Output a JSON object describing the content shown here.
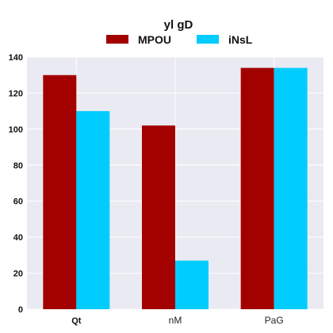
{
  "chart_data": {
    "type": "bar",
    "title": "yl gD",
    "xlabel": "",
    "ylabel": "",
    "categories": [
      "Qt",
      "nM",
      "PaG"
    ],
    "series": [
      {
        "name": "MPOU",
        "values": [
          130,
          102,
          134
        ],
        "color": "#a30000"
      },
      {
        "name": "iNsL",
        "values": [
          110,
          27,
          134
        ],
        "color": "#00ccff"
      }
    ],
    "ylim": [
      0,
      140
    ],
    "yticks": [
      "0",
      "20",
      "40",
      "60",
      "80",
      "100",
      "120",
      "140"
    ],
    "grid": true,
    "background": "#eaeaf2",
    "legend": "top-center"
  }
}
